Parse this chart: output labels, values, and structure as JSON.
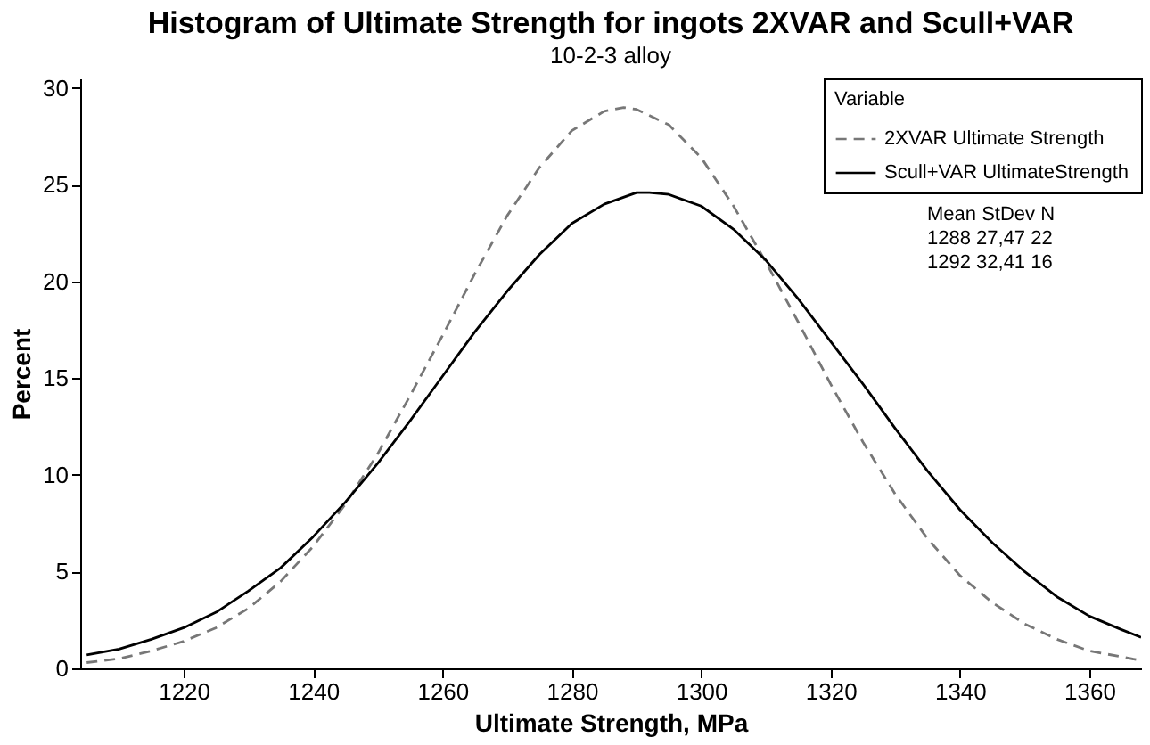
{
  "chart_data": {
    "type": "line",
    "title": "Histogram of Ultimate Strength for ingots 2XVAR and Scull+VAR",
    "subtitle": "10-2-3 alloy",
    "xlabel": "Ultimate Strength, MPa",
    "ylabel": "Percent",
    "legend_title": "Variable",
    "legend": "top right",
    "grid": false,
    "marker": "none",
    "xlim": [
      1204,
      1368
    ],
    "xticks": [
      1220,
      1240,
      1260,
      1280,
      1300,
      1320,
      1340,
      1360
    ],
    "ylim": [
      0,
      30.5
    ],
    "yticks": [
      0,
      5,
      10,
      15,
      20,
      25,
      30
    ],
    "annotations": [
      "Mean  StDev   N",
      "1288  27,47  22",
      "1292  32,41  16"
    ],
    "series": [
      {
        "name": "2XVAR    Ultimate Strength",
        "color": "#777777",
        "line_style": "dashed",
        "x": [
          1205,
          1210,
          1215,
          1220,
          1225,
          1230,
          1235,
          1240,
          1245,
          1250,
          1255,
          1260,
          1265,
          1270,
          1275,
          1280,
          1285,
          1288,
          1290,
          1295,
          1300,
          1305,
          1310,
          1315,
          1320,
          1325,
          1330,
          1335,
          1340,
          1345,
          1350,
          1355,
          1360,
          1365,
          1368
        ],
        "values": [
          0.3,
          0.5,
          0.9,
          1.4,
          2.1,
          3.1,
          4.5,
          6.3,
          8.5,
          11.1,
          14.1,
          17.2,
          20.4,
          23.4,
          25.9,
          27.8,
          28.8,
          29.0,
          28.9,
          28.1,
          26.4,
          23.9,
          21.0,
          17.9,
          14.7,
          11.7,
          9.0,
          6.7,
          4.8,
          3.4,
          2.3,
          1.5,
          0.9,
          0.6,
          0.4
        ]
      },
      {
        "name": "Scull+VAR UltimateStrength",
        "color": "#000000",
        "line_style": "solid",
        "x": [
          1205,
          1210,
          1215,
          1220,
          1225,
          1230,
          1235,
          1240,
          1245,
          1250,
          1255,
          1260,
          1265,
          1270,
          1275,
          1280,
          1285,
          1290,
          1292,
          1295,
          1300,
          1305,
          1310,
          1315,
          1320,
          1325,
          1330,
          1335,
          1340,
          1345,
          1350,
          1355,
          1360,
          1365,
          1368
        ],
        "values": [
          0.7,
          1.0,
          1.5,
          2.1,
          2.9,
          4.0,
          5.2,
          6.8,
          8.6,
          10.6,
          12.8,
          15.1,
          17.4,
          19.5,
          21.4,
          23.0,
          24.0,
          24.6,
          24.6,
          24.5,
          23.9,
          22.7,
          21.1,
          19.1,
          16.9,
          14.7,
          12.4,
          10.2,
          8.2,
          6.5,
          5.0,
          3.7,
          2.7,
          2.0,
          1.6
        ]
      }
    ]
  }
}
